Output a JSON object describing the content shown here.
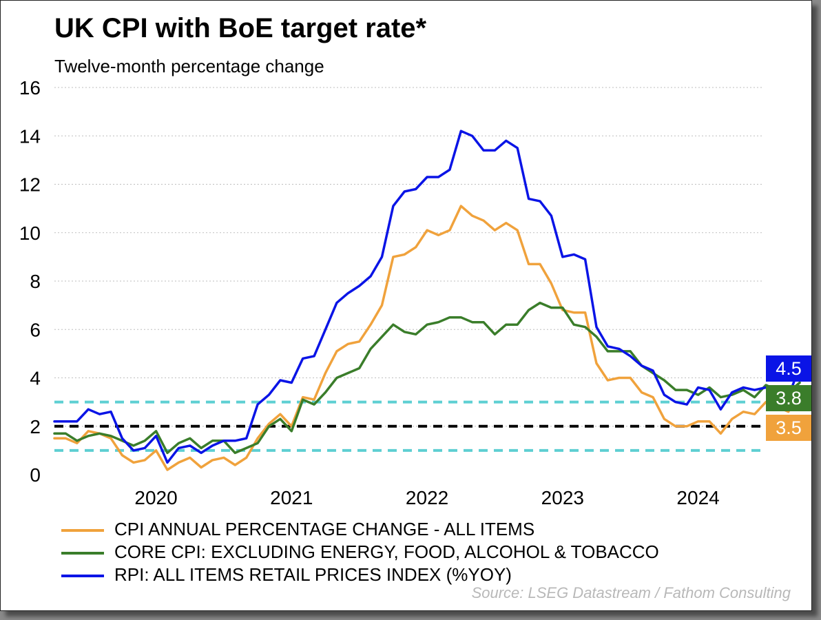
{
  "title": "UK CPI with BoE target rate*",
  "subtitle": "Twelve-month percentage change",
  "source": "Source: LSEG Datastream / Fathom Consulting",
  "chart_data": {
    "type": "line",
    "title": "UK CPI with BoE target rate*",
    "subtitle": "Twelve-month percentage change",
    "ylim": [
      0,
      16
    ],
    "yticks": [
      "0",
      "2",
      "4",
      "6",
      "8",
      "10",
      "12",
      "14",
      "16"
    ],
    "y_tick_values": [
      0,
      2,
      4,
      6,
      8,
      10,
      12,
      14,
      16
    ],
    "xlim": [
      "2019-10",
      "2024-11"
    ],
    "xticks": [
      {
        "label": "2020",
        "month": "2020-07"
      },
      {
        "label": "2021",
        "month": "2021-07"
      },
      {
        "label": "2022",
        "month": "2022-07"
      },
      {
        "label": "2023",
        "month": "2023-07"
      },
      {
        "label": "2024",
        "month": "2024-07"
      }
    ],
    "grid": "horizontal-dotted",
    "start_month": "2019-10",
    "reference_lines": [
      {
        "value": 2,
        "color": "#000000",
        "style": "dashed"
      },
      {
        "value": 3,
        "color": "#5ecfd2",
        "style": "dashed"
      },
      {
        "value": 1,
        "color": "#5ecfd2",
        "style": "dashed"
      }
    ],
    "series": [
      {
        "name": "CPI ANNUAL PERCENTAGE CHANGE - ALL ITEMS",
        "color": "#f0a23c",
        "last_value": "3.5",
        "values": [
          1.5,
          1.5,
          1.3,
          1.8,
          1.7,
          1.5,
          0.8,
          0.5,
          0.6,
          1.0,
          0.2,
          0.5,
          0.7,
          0.3,
          0.6,
          0.7,
          0.4,
          0.7,
          1.5,
          2.1,
          2.5,
          2.0,
          3.2,
          3.1,
          4.2,
          5.1,
          5.4,
          5.5,
          6.2,
          7.0,
          9.0,
          9.1,
          9.4,
          10.1,
          9.9,
          10.1,
          11.1,
          10.7,
          10.5,
          10.1,
          10.4,
          10.1,
          8.7,
          8.7,
          7.9,
          6.8,
          6.7,
          6.7,
          4.6,
          3.9,
          4.0,
          4.0,
          3.4,
          3.2,
          2.3,
          2.0,
          2.0,
          2.2,
          2.2,
          1.7,
          2.3,
          2.6,
          2.5,
          3.0,
          2.8,
          2.6,
          3.5
        ]
      },
      {
        "name": "CORE CPI: EXCLUDING ENERGY, FOOD, ALCOHOL & TOBACCO",
        "color": "#3a7d2a",
        "last_value": "3.8",
        "values": [
          1.7,
          1.7,
          1.4,
          1.6,
          1.7,
          1.6,
          1.4,
          1.2,
          1.4,
          1.8,
          0.9,
          1.3,
          1.5,
          1.1,
          1.4,
          1.4,
          0.9,
          1.1,
          1.3,
          2.0,
          2.3,
          1.8,
          3.1,
          2.9,
          3.4,
          4.0,
          4.2,
          4.4,
          5.2,
          5.7,
          6.2,
          5.9,
          5.8,
          6.2,
          6.3,
          6.5,
          6.5,
          6.3,
          6.3,
          5.8,
          6.2,
          6.2,
          6.8,
          7.1,
          6.9,
          6.9,
          6.2,
          6.1,
          5.7,
          5.1,
          5.1,
          5.1,
          4.5,
          4.2,
          3.9,
          3.5,
          3.5,
          3.3,
          3.6,
          3.2,
          3.3,
          3.5,
          3.2,
          3.7,
          3.5,
          3.4,
          3.8
        ]
      },
      {
        "name": "RPI: ALL ITEMS RETAIL PRICES INDEX (%YOY)",
        "color": "#0a14e6",
        "last_value": "4.5",
        "values": [
          2.2,
          2.2,
          2.2,
          2.7,
          2.5,
          2.6,
          1.5,
          1.0,
          1.1,
          1.6,
          0.5,
          1.1,
          1.2,
          0.9,
          1.2,
          1.4,
          1.4,
          1.5,
          2.9,
          3.3,
          3.9,
          3.8,
          4.8,
          4.9,
          6.0,
          7.1,
          7.5,
          7.8,
          8.2,
          9.0,
          11.1,
          11.7,
          11.8,
          12.3,
          12.3,
          12.6,
          14.2,
          14.0,
          13.4,
          13.4,
          13.8,
          13.5,
          11.4,
          11.3,
          10.7,
          9.0,
          9.1,
          8.9,
          6.1,
          5.3,
          5.2,
          4.9,
          4.5,
          4.3,
          3.3,
          3.0,
          2.9,
          3.6,
          3.5,
          2.7,
          3.4,
          3.6,
          3.5,
          3.6,
          3.4,
          3.2,
          4.5
        ]
      }
    ]
  }
}
